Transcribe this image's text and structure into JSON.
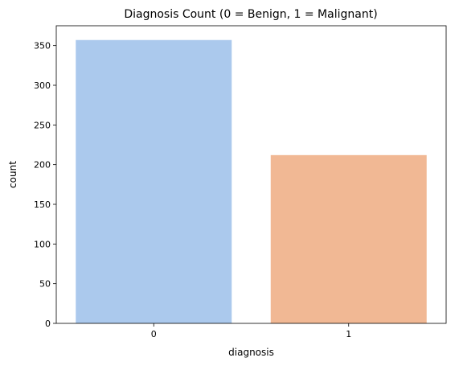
{
  "chart_data": {
    "type": "bar",
    "title": "Diagnosis Count (0 = Benign, 1 = Malignant)",
    "xlabel": "diagnosis",
    "ylabel": "count",
    "categories": [
      "0",
      "1"
    ],
    "values": [
      357,
      212
    ],
    "ylim": [
      0,
      375
    ],
    "yticks": [
      0,
      50,
      100,
      150,
      200,
      250,
      300,
      350
    ],
    "colors": [
      "#abc9ed",
      "#f1b894"
    ],
    "grid": false,
    "legend": "none"
  }
}
